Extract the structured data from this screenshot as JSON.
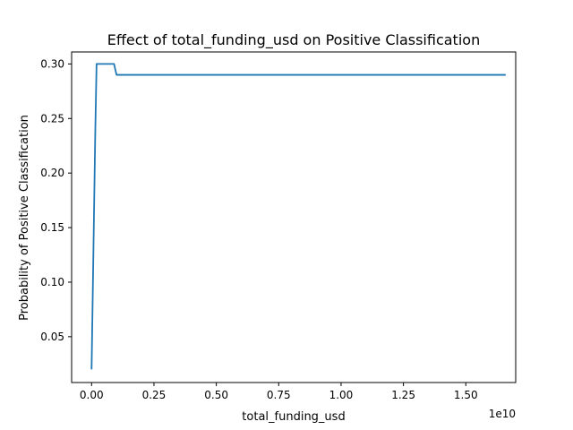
{
  "chart_data": {
    "type": "line",
    "title": "Effect of total_funding_usd on Positive Classification",
    "xlabel": "total_funding_usd",
    "ylabel": "Probability of Positive Classification",
    "x_offset_label": "1e10",
    "xlim": [
      -0.08,
      1.7
    ],
    "ylim": [
      0.008,
      0.311
    ],
    "x_unit_scale": "1e10",
    "x_ticks": [
      0.0,
      0.25,
      0.5,
      0.75,
      1.0,
      1.25,
      1.5
    ],
    "x_tick_labels": [
      "0.00",
      "0.25",
      "0.50",
      "0.75",
      "1.00",
      "1.25",
      "1.50"
    ],
    "y_ticks": [
      0.05,
      0.1,
      0.15,
      0.2,
      0.25,
      0.3
    ],
    "y_tick_labels": [
      "0.05",
      "0.10",
      "0.15",
      "0.20",
      "0.25",
      "0.30"
    ],
    "grid": false,
    "legend": "none",
    "series": [
      {
        "color": "#1f77b4",
        "points": [
          [
            0.0,
            0.02
          ],
          [
            0.015,
            0.24
          ],
          [
            0.02,
            0.3
          ],
          [
            0.09,
            0.3
          ],
          [
            0.1,
            0.29
          ],
          [
            1.66,
            0.29
          ]
        ]
      }
    ]
  }
}
